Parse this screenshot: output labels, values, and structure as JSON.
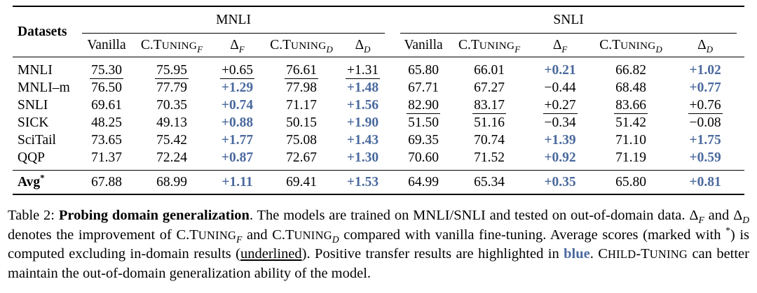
{
  "colors": {
    "highlight_blue": "#4a699e",
    "text": "#000000",
    "background": "#ffffff"
  },
  "table": {
    "corner_label": "Datasets",
    "groups": [
      {
        "label": "MNLI"
      },
      {
        "label": "SNLI"
      }
    ],
    "subheaders": [
      {
        "kind": "plain",
        "text": "Vanilla"
      },
      {
        "kind": "ctuning",
        "prefix": "C.T",
        "smallcaps": "UNING",
        "sub": "F"
      },
      {
        "kind": "delta",
        "symbol": "Δ",
        "sub": "F"
      },
      {
        "kind": "ctuning",
        "prefix": "C.T",
        "smallcaps": "UNING",
        "sub": "D"
      },
      {
        "kind": "delta",
        "symbol": "Δ",
        "sub": "D"
      },
      {
        "kind": "plain",
        "text": "Vanilla"
      },
      {
        "kind": "ctuning",
        "prefix": "C.T",
        "smallcaps": "UNING",
        "sub": "F"
      },
      {
        "kind": "delta",
        "symbol": "Δ",
        "sub": "F"
      },
      {
        "kind": "ctuning",
        "prefix": "C.T",
        "smallcaps": "UNING",
        "sub": "D"
      },
      {
        "kind": "delta",
        "symbol": "Δ",
        "sub": "D"
      }
    ],
    "rows": [
      {
        "label": "MNLI",
        "cells": [
          {
            "t": "75.30",
            "u": true
          },
          {
            "t": "75.95",
            "u": true
          },
          {
            "t": "+0.65",
            "u": true
          },
          {
            "t": "76.61",
            "u": true
          },
          {
            "t": "+1.31",
            "u": true
          },
          {
            "t": "65.80"
          },
          {
            "t": "66.01"
          },
          {
            "t": "+0.21",
            "b": true
          },
          {
            "t": "66.82"
          },
          {
            "t": "+1.02",
            "b": true
          }
        ]
      },
      {
        "label": "MNLI–m",
        "cells": [
          {
            "t": "76.50"
          },
          {
            "t": "77.79"
          },
          {
            "t": "+1.29",
            "b": true
          },
          {
            "t": "77.98"
          },
          {
            "t": "+1.48",
            "b": true
          },
          {
            "t": "67.71"
          },
          {
            "t": "67.27"
          },
          {
            "t": "−0.44"
          },
          {
            "t": "68.48"
          },
          {
            "t": "+0.77",
            "b": true
          }
        ]
      },
      {
        "label": "SNLI",
        "cells": [
          {
            "t": "69.61"
          },
          {
            "t": "70.35"
          },
          {
            "t": "+0.74",
            "b": true
          },
          {
            "t": "71.17"
          },
          {
            "t": "+1.56",
            "b": true
          },
          {
            "t": "82.90",
            "u": true
          },
          {
            "t": "83.17",
            "u": true
          },
          {
            "t": "+0.27",
            "u": true
          },
          {
            "t": "83.66",
            "u": true
          },
          {
            "t": "+0.76",
            "u": true
          }
        ]
      },
      {
        "label": "SICK",
        "cells": [
          {
            "t": "48.25"
          },
          {
            "t": "49.13"
          },
          {
            "t": "+0.88",
            "b": true
          },
          {
            "t": "50.15"
          },
          {
            "t": "+1.90",
            "b": true
          },
          {
            "t": "51.50"
          },
          {
            "t": "51.16"
          },
          {
            "t": "−0.34"
          },
          {
            "t": "51.42"
          },
          {
            "t": "−0.08"
          }
        ]
      },
      {
        "label": "SciTail",
        "cells": [
          {
            "t": "73.65"
          },
          {
            "t": "75.42"
          },
          {
            "t": "+1.77",
            "b": true
          },
          {
            "t": "75.08"
          },
          {
            "t": "+1.43",
            "b": true
          },
          {
            "t": "69.35"
          },
          {
            "t": "70.74"
          },
          {
            "t": "+1.39",
            "b": true
          },
          {
            "t": "71.10"
          },
          {
            "t": "+1.75",
            "b": true
          }
        ]
      },
      {
        "label": "QQP",
        "cells": [
          {
            "t": "71.37"
          },
          {
            "t": "72.24"
          },
          {
            "t": "+0.87",
            "b": true
          },
          {
            "t": "72.67"
          },
          {
            "t": "+1.30",
            "b": true
          },
          {
            "t": "70.60"
          },
          {
            "t": "71.52"
          },
          {
            "t": "+0.92",
            "b": true
          },
          {
            "t": "71.19"
          },
          {
            "t": "+0.59",
            "b": true
          }
        ]
      }
    ],
    "avg_row": {
      "label": "Avg",
      "label_sup": "*",
      "cells": [
        {
          "t": "67.88"
        },
        {
          "t": "68.99"
        },
        {
          "t": "+1.11",
          "b": true
        },
        {
          "t": "69.41"
        },
        {
          "t": "+1.53",
          "b": true
        },
        {
          "t": "64.99"
        },
        {
          "t": "65.34"
        },
        {
          "t": "+0.35",
          "b": true
        },
        {
          "t": "65.80"
        },
        {
          "t": "+0.81",
          "b": true
        }
      ]
    }
  },
  "caption": {
    "segments": [
      {
        "t": "Table 2: "
      },
      {
        "t": "Probing domain generalization",
        "bold": true
      },
      {
        "t": ". The models are trained on MNLI/SNLI and tested on out-of-domain data. "
      },
      {
        "t": "Δ"
      },
      {
        "t": "F",
        "sub": true
      },
      {
        "t": " and "
      },
      {
        "t": "Δ"
      },
      {
        "t": "D",
        "sub": true
      },
      {
        "t": " denotes the improvement of C.T"
      },
      {
        "t": "UNING",
        "sc": true
      },
      {
        "t": "F",
        "sub": true
      },
      {
        "t": " and C.T"
      },
      {
        "t": "UNING",
        "sc": true
      },
      {
        "t": "D",
        "sub": true
      },
      {
        "t": " compared with vanilla fine-tuning. Average scores (marked with "
      },
      {
        "t": "*",
        "sup": true
      },
      {
        "t": ") is computed excluding in-domain results ("
      },
      {
        "t": "underlined",
        "underline": true
      },
      {
        "t": "). Positive transfer results are highlighted in "
      },
      {
        "t": "blue",
        "bold": true,
        "blue": true
      },
      {
        "t": ". C"
      },
      {
        "t": "HILD",
        "sc": true
      },
      {
        "t": "-T"
      },
      {
        "t": "UNING",
        "sc": true
      },
      {
        "t": " can better maintain the out-of-domain generalization ability of the model."
      }
    ]
  }
}
